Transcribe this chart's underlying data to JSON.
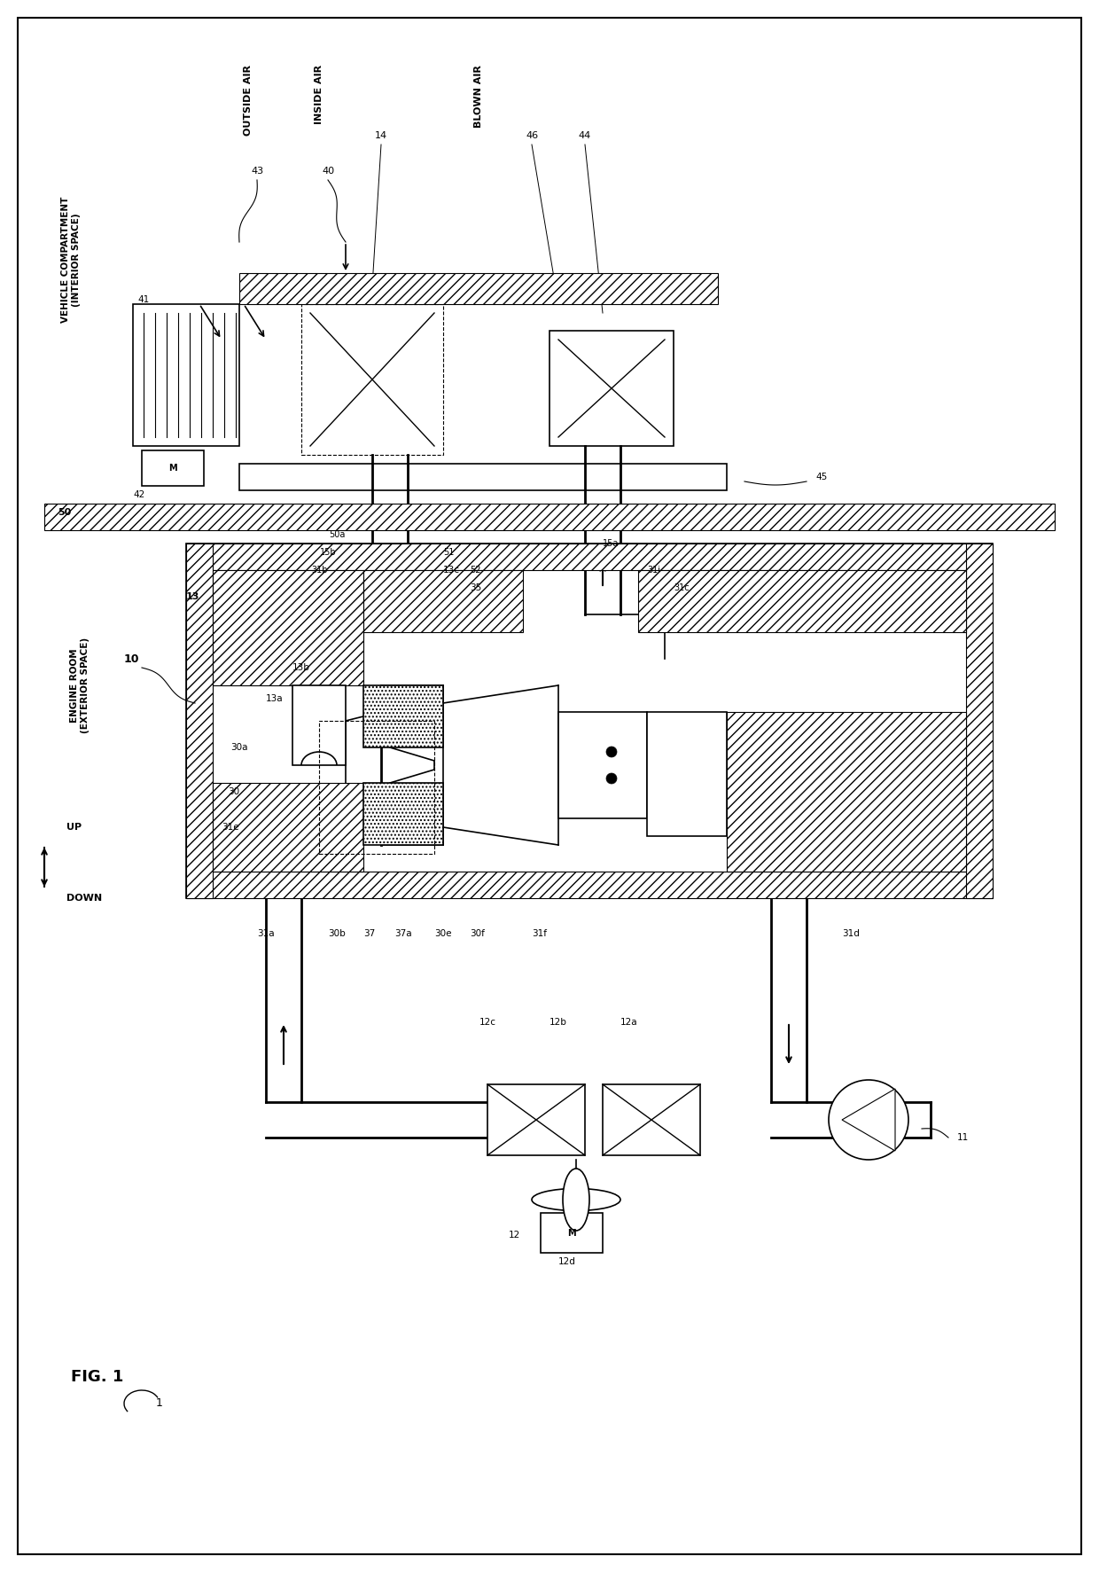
{
  "title": "FIG. 1",
  "fig_label": "1",
  "background_color": "#ffffff",
  "line_color": "#000000",
  "labels": {
    "vehicle_compartment": "VEHICLE COMPARTMENT\n(INTERIOR SPACE)",
    "engine_room": "ENGINE ROOM\n(EXTERIOR SPACE)",
    "outside_air": "OUTSIDE AIR",
    "inside_air": "INSIDE AIR",
    "blown_air": "BLOWN AIR",
    "up": "UP",
    "down": "DOWN",
    "fig1": "FIG. 1"
  },
  "part_numbers": {
    "n1": "1",
    "n10": "10",
    "n11": "11",
    "n12": "12",
    "n12a": "12a",
    "n12b": "12b",
    "n12c": "12c",
    "n12d": "12d",
    "n13": "13",
    "n13a": "13a",
    "n13b": "13b",
    "n13c": "13c",
    "n14": "14",
    "n15a": "15a",
    "n15b": "15b",
    "n30": "30",
    "n30a": "30a",
    "n30b": "30b",
    "n30e": "30e",
    "n30f": "30f",
    "n31a": "31a",
    "n31b": "31b",
    "n31c": "31c",
    "n31d": "31d",
    "n31e": "31e",
    "n31f": "31f",
    "n31i": "31i",
    "n35": "35",
    "n37": "37",
    "n37a": "37a",
    "n40": "40",
    "n41": "41",
    "n42": "42",
    "n43": "43",
    "n44": "44",
    "n45": "45",
    "n46": "46",
    "n50": "50",
    "n50a": "50a",
    "n51": "51",
    "n52": "52"
  }
}
